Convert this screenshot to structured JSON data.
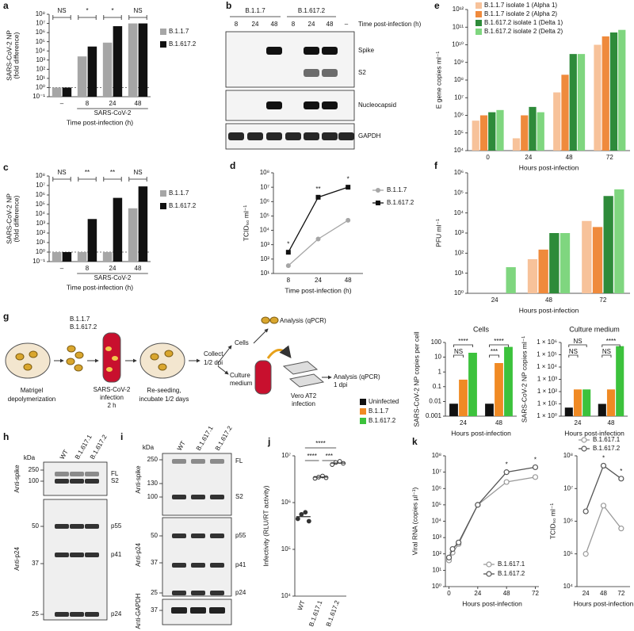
{
  "chart_data": [
    {
      "panel": "a",
      "type": "bar",
      "log_y": true,
      "legend": "right",
      "ylabel": [
        "SARS-CoV-2 NP",
        "(fold difference)"
      ],
      "categories": [
        "–",
        "8",
        "24",
        "48"
      ],
      "group_label": "SARS-CoV-2",
      "xlabel": "Time post-infection (h)",
      "series": [
        {
          "name": "B.1.1.7",
          "color": "#a6a6a6",
          "values": [
            1,
            2500,
            80000,
            10000000
          ]
        },
        {
          "name": "B.1.617.2",
          "color": "#111111",
          "values": [
            1,
            30000,
            5000000,
            10000000
          ]
        }
      ],
      "ylim": [
        0.1,
        100000000
      ],
      "yticks": [
        {
          "value": 0.1,
          "label": "10⁻¹"
        },
        {
          "value": 1,
          "label": "10⁰"
        },
        {
          "value": 10,
          "label": "10¹"
        },
        {
          "value": 100,
          "label": "10²"
        },
        {
          "value": 1000,
          "label": "10³"
        },
        {
          "value": 10000,
          "label": "10⁴"
        },
        {
          "value": 100000,
          "label": "10⁵"
        },
        {
          "value": 1000000,
          "label": "10⁶"
        },
        {
          "value": 10000000,
          "label": "10⁷"
        },
        {
          "value": 100000000,
          "label": "10⁸"
        }
      ],
      "reference_line": 1,
      "significance": [
        "NS",
        "*",
        "*",
        "NS"
      ]
    },
    {
      "panel": "c",
      "type": "bar",
      "log_y": true,
      "legend": "right",
      "ylabel": [
        "SARS-CoV-2 NP",
        "(fold difference)"
      ],
      "categories": [
        "–",
        "8",
        "24",
        "48"
      ],
      "group_label": "SARS-CoV-2",
      "xlabel": "Time post-infection (h)",
      "series": [
        {
          "name": "B.1.1.7",
          "color": "#a6a6a6",
          "values": [
            1,
            1,
            1,
            40000
          ]
        },
        {
          "name": "B.1.617.2",
          "color": "#111111",
          "values": [
            1,
            3000,
            500000,
            8000000
          ]
        }
      ],
      "ylim": [
        0.1,
        100000000
      ],
      "yticks": [
        {
          "value": 0.1,
          "label": "10⁻¹"
        },
        {
          "value": 1,
          "label": "10⁰"
        },
        {
          "value": 10,
          "label": "10¹"
        },
        {
          "value": 100,
          "label": "10²"
        },
        {
          "value": 1000,
          "label": "10³"
        },
        {
          "value": 10000,
          "label": "10⁴"
        },
        {
          "value": 100000,
          "label": "10⁵"
        },
        {
          "value": 1000000,
          "label": "10⁶"
        },
        {
          "value": 10000000,
          "label": "10⁷"
        },
        {
          "value": 100000000,
          "label": "10⁸"
        }
      ],
      "reference_line": 1,
      "significance": [
        "NS",
        "**",
        "**",
        "NS"
      ]
    },
    {
      "panel": "d",
      "type": "line",
      "log_y": true,
      "legend": "right",
      "ylabel": "TCID₅₀ ml⁻¹",
      "xlabel": "Time post-infection (h)",
      "categories": [
        "8",
        "24",
        "48"
      ],
      "series": [
        {
          "name": "B.1.1.7",
          "color": "#a6a6a6",
          "marker": "circle",
          "values": [
            35,
            2500,
            50000
          ]
        },
        {
          "name": "B.1.617.2",
          "color": "#111111",
          "marker": "square",
          "values": [
            300,
            2000000,
            10000000
          ]
        }
      ],
      "ylim": [
        10,
        100000000
      ],
      "yticks": [
        {
          "value": 10,
          "label": "10¹"
        },
        {
          "value": 100,
          "label": "10²"
        },
        {
          "value": 1000,
          "label": "10³"
        },
        {
          "value": 10000,
          "label": "10⁴"
        },
        {
          "value": 100000,
          "label": "10⁵"
        },
        {
          "value": 1000000,
          "label": "10⁶"
        },
        {
          "value": 10000000,
          "label": "10⁷"
        },
        {
          "value": 100000000,
          "label": "10⁸"
        }
      ],
      "significance": [
        "*",
        "**",
        "*"
      ]
    },
    {
      "panel": "e",
      "type": "bar",
      "log_y": true,
      "legend": "top",
      "ylabel": "E gene copies ml⁻¹",
      "xlabel": "Hours post-infection",
      "categories": [
        "0",
        "24",
        "48",
        "72"
      ],
      "series": [
        {
          "name": "B.1.1.7 isolate 1 (Alpha 1)",
          "color": "#f7c29a",
          "values": [
            500000,
            50000,
            20000000,
            10000000000
          ]
        },
        {
          "name": "B.1.1.7 isolate 2 (Alpha 2)",
          "color": "#ef8a3c",
          "values": [
            1000000,
            1000000,
            200000000,
            30000000000
          ]
        },
        {
          "name": "B.1.617.2 isolate 1 (Delta 1)",
          "color": "#2e8b3a",
          "values": [
            1500000,
            3000000,
            3000000000,
            50000000000
          ]
        },
        {
          "name": "B.1.617.2 isolate 2 (Delta 2)",
          "color": "#7fd67f",
          "values": [
            2000000,
            1500000,
            3000000000,
            70000000000
          ]
        }
      ],
      "ylim": [
        10000,
        1000000000000.0
      ],
      "yticks": [
        {
          "value": 10000,
          "label": "10⁴"
        },
        {
          "value": 100000,
          "label": "10⁵"
        },
        {
          "value": 1000000,
          "label": "10⁶"
        },
        {
          "value": 10000000,
          "label": "10⁷"
        },
        {
          "value": 100000000,
          "label": "10⁸"
        },
        {
          "value": 1000000000,
          "label": "10⁹"
        },
        {
          "value": 10000000000,
          "label": "10¹⁰"
        },
        {
          "value": 100000000000,
          "label": "10¹¹"
        },
        {
          "value": 1000000000000.0,
          "label": "10¹²"
        }
      ]
    },
    {
      "panel": "f",
      "type": "bar",
      "log_y": true,
      "ylabel": "PFU ml⁻¹",
      "xlabel": "Hours post-infection",
      "categories": [
        "24",
        "48",
        "72"
      ],
      "series": [
        {
          "color": "#f7c29a",
          "values": [
            1,
            50,
            4000
          ]
        },
        {
          "color": "#ef8a3c",
          "values": [
            1,
            150,
            2000
          ]
        },
        {
          "color": "#2e8b3a",
          "values": [
            1,
            1000,
            70000
          ]
        },
        {
          "color": "#7fd67f",
          "values": [
            20,
            1000,
            150000
          ]
        }
      ],
      "ylim": [
        1,
        1000000
      ],
      "yticks": [
        {
          "value": 1,
          "label": "10⁰"
        },
        {
          "value": 10,
          "label": "10¹"
        },
        {
          "value": 100,
          "label": "10²"
        },
        {
          "value": 1000,
          "label": "10³"
        },
        {
          "value": 10000,
          "label": "10⁴"
        },
        {
          "value": 100000,
          "label": "10⁵"
        },
        {
          "value": 1000000,
          "label": "10⁶"
        }
      ]
    },
    {
      "type": "bar",
      "log_y": true,
      "legend": "left",
      "title": "Cells",
      "ylabel": "SARS-CoV-2 NP copies per cell",
      "xlabel": "Hours post-infection",
      "categories": [
        "24",
        "48"
      ],
      "series": [
        {
          "name": "Uninfected",
          "color": "#111111",
          "values": [
            0.007,
            0.007
          ]
        },
        {
          "name": "B.1.1.7",
          "color": "#f08a24",
          "values": [
            0.3,
            4
          ]
        },
        {
          "name": "B.1.617.2",
          "color": "#3cc23c",
          "values": [
            20,
            50
          ]
        }
      ],
      "ylim": [
        0.001,
        100
      ],
      "yticks": [
        0.001,
        0.01,
        0.1,
        1,
        10,
        100
      ],
      "significance": [
        [
          "NS",
          "****"
        ],
        [
          "***",
          "****"
        ]
      ]
    },
    {
      "type": "bar",
      "log_y": true,
      "title": "Culture medium",
      "ylabel": "SARS-CoV-2 NP copies ml⁻¹",
      "xlabel": "Hours post-infection",
      "categories": [
        "24",
        "48"
      ],
      "series": [
        {
          "color": "#111111",
          "values": [
            5,
            10
          ]
        },
        {
          "color": "#f08a24",
          "values": [
            150,
            150
          ]
        },
        {
          "color": "#3cc23c",
          "values": [
            150,
            500000
          ]
        }
      ],
      "ylim": [
        1,
        1000000
      ],
      "yticks": [
        {
          "value": 1,
          "label": "1 × 10⁰"
        },
        {
          "value": 10,
          "label": "1 × 10¹"
        },
        {
          "value": 100,
          "label": "1 × 10²"
        },
        {
          "value": 1000,
          "label": "1 × 10³"
        },
        {
          "value": 10000,
          "label": "1 × 10⁴"
        },
        {
          "value": 100000,
          "label": "1 × 10⁵"
        },
        {
          "value": 1000000,
          "label": "1 × 10⁶"
        }
      ],
      "significance": [
        [
          "NS",
          "NS"
        ],
        [
          "NS",
          "****"
        ]
      ]
    },
    {
      "panel": "j",
      "type": "dot",
      "log_y": true,
      "color": "#333333",
      "ylabel": "Infectivity (RLU/RT activity)",
      "categories": [
        "WT",
        "B.1.617.1",
        "B.1.617.2"
      ],
      "values": [
        500000,
        3500000,
        7000000
      ],
      "points": [
        [
          450000,
          560000,
          620000,
          400000
        ],
        [
          3300000,
          3500000,
          3700000,
          3400000
        ],
        [
          6500000,
          7200000,
          7600000,
          6900000
        ]
      ],
      "ylim": [
        10000,
        10000000
      ],
      "yticks": [
        {
          "value": 10000,
          "label": "10⁴"
        },
        {
          "value": 100000,
          "label": "10⁵"
        },
        {
          "value": 1000000,
          "label": "10⁶"
        },
        {
          "value": 10000000,
          "label": "10⁷"
        }
      ],
      "significance": [
        "****",
        "****",
        "***"
      ]
    },
    {
      "panel": "k",
      "type": "line",
      "log_y": true,
      "legend": "bottom-right",
      "ylabel": "Viral RNA (copies µl⁻¹)",
      "xlabel": "Hours post-infection",
      "x": [
        0,
        3,
        8,
        24,
        48,
        72
      ],
      "xlim": [
        -3,
        75
      ],
      "xticks": [
        0,
        24,
        48,
        72
      ],
      "series": [
        {
          "name": "B.1.617.1",
          "color": "#9a9a9a",
          "marker": "open-circle",
          "values": [
            40,
            120,
            400,
            100000,
            2500000,
            5000000
          ]
        },
        {
          "name": "B.1.617.2",
          "color": "#555555",
          "marker": "open-circle",
          "values": [
            60,
            200,
            500,
            100000,
            10000000,
            20000000
          ]
        }
      ],
      "ylim": [
        1,
        100000000
      ],
      "yticks": [
        {
          "value": 1,
          "label": "10⁰"
        },
        {
          "value": 10,
          "label": "10¹"
        },
        {
          "value": 100,
          "label": "10²"
        },
        {
          "value": 1000,
          "label": "10³"
        },
        {
          "value": 10000,
          "label": "10⁴"
        },
        {
          "value": 100000,
          "label": "10⁵"
        },
        {
          "value": 1000000,
          "label": "10⁶"
        },
        {
          "value": 10000000,
          "label": "10⁷"
        },
        {
          "value": 100000000,
          "label": "10⁸"
        }
      ],
      "significance": [
        "*",
        "*"
      ]
    },
    {
      "type": "line",
      "log_y": true,
      "legend": "above",
      "ylabel": "TCID₅₀ ml⁻¹",
      "xlabel": "Hours post-infection",
      "categories": [
        "24",
        "48",
        "72"
      ],
      "series": [
        {
          "name": "B.1.617.1",
          "color": "#9a9a9a",
          "marker": "open-circle",
          "values": [
            100000,
            3000000,
            600000
          ]
        },
        {
          "name": "B.1.617.2",
          "color": "#555555",
          "marker": "open-circle",
          "values": [
            2000000,
            50000000,
            20000000
          ]
        }
      ],
      "ylim": [
        10000,
        100000000
      ],
      "yticks": [
        {
          "value": 10000,
          "label": "10⁴"
        },
        {
          "value": 100000,
          "label": "10⁵"
        },
        {
          "value": 1000000,
          "label": "10⁶"
        },
        {
          "value": 10000000,
          "label": "10⁷"
        },
        {
          "value": 100000000,
          "label": "10⁸"
        }
      ],
      "significance": [
        "*",
        "*"
      ]
    }
  ],
  "blots": [
    {
      "panel": "b",
      "groups": [
        "B.1.1.7",
        "B.1.617.2"
      ],
      "lanes": [
        "8",
        "24",
        "48",
        "8",
        "24",
        "48",
        "–"
      ],
      "xlabel": "Time post-infection (h)",
      "bands": [
        "Spike",
        "S2",
        "Nucleocapsid",
        "GAPDH"
      ]
    },
    {
      "panel": "h",
      "unit": "kDa",
      "lanes": [
        "WT",
        "B.1.617.1",
        "B.1.617.2"
      ],
      "antibodies": [
        "Anti-spike",
        "Anti-p24"
      ],
      "markers": [
        "250",
        "100",
        "50",
        "37",
        "25"
      ],
      "bands": [
        "FL",
        "S2",
        "p55",
        "p41",
        "p24"
      ]
    },
    {
      "panel": "i",
      "unit": "kDa",
      "lanes": [
        "WT",
        "B.1.617.1",
        "B.1.617.2"
      ],
      "antibodies": [
        "Anti-spike",
        "Anti-p24",
        "Anti-GAPDH"
      ],
      "markers": [
        "250",
        "130",
        "100",
        "50",
        "37",
        "25",
        "37"
      ],
      "bands": [
        "FL",
        "S2",
        "p55",
        "p41",
        "p24"
      ]
    }
  ],
  "diagram": {
    "panel": "g",
    "variants": [
      "B.1.1.7",
      "B.1.617.2"
    ],
    "steps": [
      [
        "Matrigel",
        "depolymerization"
      ],
      [
        "SARS-CoV-2",
        "infection",
        "2 h"
      ],
      [
        "Re-seeding,",
        "incubate 1/2 days"
      ],
      [
        "Collect",
        "1/2 dpi"
      ]
    ],
    "branches": [
      [
        "Cells"
      ],
      [
        "Culture",
        "medium"
      ]
    ],
    "analysis": [
      [
        "Analysis (qPCR)"
      ],
      [
        "Analysis (qPCR)",
        "1 dpi"
      ]
    ],
    "vero": [
      "Vero AT2",
      "infection"
    ]
  }
}
